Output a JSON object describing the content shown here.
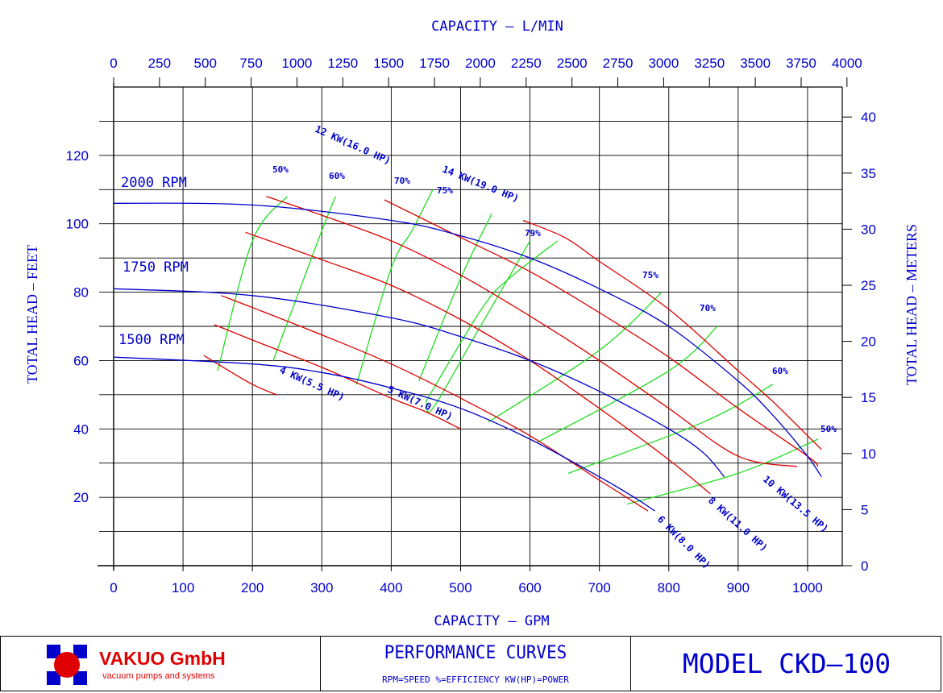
{
  "chart_data": {
    "type": "line",
    "title_top": "CAPACITY  –  L/MIN",
    "title_bottom": "CAPACITY  –  GPM",
    "ylabel_left": "TOTAL HEAD  –  FEET",
    "ylabel_right": "TOTAL HEAD  –  METERS",
    "x_gpm_range": [
      0,
      1050
    ],
    "y_ft_range": [
      0,
      140
    ],
    "x_gpm_ticks": [
      "0",
      "100",
      "200",
      "300",
      "400",
      "500",
      "600",
      "700",
      "800",
      "900",
      "1000"
    ],
    "x_lmin_ticks": [
      "0",
      "250",
      "500",
      "750",
      "1000",
      "1250",
      "1500",
      "1750",
      "2000",
      "2250",
      "2500",
      "2750",
      "3000",
      "3250",
      "3500",
      "3750",
      "4000"
    ],
    "y_ft_ticks": [
      "20",
      "40",
      "60",
      "80",
      "100",
      "120"
    ],
    "y_m_ticks": [
      "0",
      "5",
      "10",
      "15",
      "20",
      "25",
      "30",
      "35",
      "40"
    ],
    "speed_curves": [
      {
        "name": "2000 RPM",
        "x": [
          0,
          200,
          400,
          500,
          600,
          700,
          800,
          900,
          950,
          1000,
          1020
        ],
        "y": [
          106,
          105.5,
          101,
          96.5,
          90,
          81,
          70,
          54,
          44,
          32,
          26
        ]
      },
      {
        "name": "1750 RPM",
        "x": [
          0,
          200,
          400,
          500,
          600,
          700,
          800,
          850,
          880
        ],
        "y": [
          81,
          79,
          72.5,
          67,
          60,
          51,
          40,
          33,
          26
        ]
      },
      {
        "name": "1500 RPM",
        "x": [
          0,
          200,
          300,
          400,
          500,
          600,
          700,
          750,
          780
        ],
        "y": [
          61,
          59,
          56.5,
          52,
          46,
          37,
          26,
          20,
          16
        ]
      }
    ],
    "power_curves": [
      {
        "name": "4 KW(5.5 HP)",
        "x": [
          130,
          150,
          200,
          235
        ],
        "y": [
          61.5,
          59,
          53,
          50
        ]
      },
      {
        "name": "5 KW(7.0 HP)",
        "x": [
          145,
          200,
          300,
          400,
          450,
          500
        ],
        "y": [
          70.5,
          66,
          58,
          49,
          45,
          40
        ]
      },
      {
        "name": "6 KW(8.0 HP)",
        "x": [
          155,
          200,
          300,
          400,
          500,
          600,
          700,
          770
        ],
        "y": [
          79,
          75.5,
          67.5,
          59,
          49,
          38,
          25,
          16
        ]
      },
      {
        "name": "8 KW(11.0 HP)",
        "x": [
          190,
          300,
          400,
          500,
          600,
          700,
          800,
          860
        ],
        "y": [
          97.5,
          89.5,
          82,
          72,
          60,
          46,
          31,
          21
        ]
      },
      {
        "name": "10 KW(13.5 HP)",
        "x": [
          220,
          300,
          400,
          500,
          600,
          700,
          800,
          900,
          985
        ],
        "y": [
          108,
          102.5,
          95,
          85,
          73,
          60,
          46,
          32,
          29
        ]
      },
      {
        "name": "12 KW(16.0 HP)",
        "x": [
          390,
          500,
          600,
          700,
          800,
          900,
          1000,
          1015
        ],
        "y": [
          107,
          96,
          86,
          74,
          61,
          46,
          32,
          29
        ]
      },
      {
        "name": "14 KW(19.0 HP)",
        "x": [
          590,
          650,
          700,
          800,
          900,
          950,
          1000,
          1020
        ],
        "y": [
          101,
          96,
          89,
          75,
          57,
          48,
          38,
          34
        ]
      }
    ],
    "efficiency_curves": [
      {
        "name": "50%",
        "x": [
          150,
          200,
          250
        ],
        "y": [
          57,
          95,
          108
        ]
      },
      {
        "name": "60%",
        "x": [
          230,
          300,
          320
        ],
        "y": [
          60,
          98,
          108
        ]
      },
      {
        "name": "70%",
        "x": [
          350,
          400,
          430,
          460
        ],
        "y": [
          53,
          87,
          98,
          110
        ]
      },
      {
        "name": "75%",
        "x": [
          440,
          500,
          545
        ],
        "y": [
          54,
          84,
          103
        ]
      },
      {
        "name": "79%",
        "x": [
          450,
          460,
          520,
          600
        ],
        "y": [
          48,
          46,
          67,
          95
        ]
      },
      {
        "name": "79%",
        "x": [
          450,
          530,
          570,
          640
        ],
        "y": [
          48,
          75,
          84,
          95
        ]
      },
      {
        "name": "75%",
        "x": [
          540,
          700,
          790
        ],
        "y": [
          42,
          63,
          80
        ]
      },
      {
        "name": "70%",
        "x": [
          610,
          800,
          870
        ],
        "y": [
          36,
          57,
          70
        ]
      },
      {
        "name": "60%",
        "x": [
          655,
          850,
          950
        ],
        "y": [
          27,
          42,
          53
        ]
      },
      {
        "name": "50%",
        "x": [
          740,
          900,
          1015
        ],
        "y": [
          18,
          27,
          37
        ]
      }
    ],
    "grid": true
  },
  "efficiency_labels": [
    "50%",
    "60%",
    "70%",
    "75%",
    "79%",
    "75%",
    "70%",
    "60%",
    "50%"
  ],
  "footer": {
    "brand": "VAKUO GmbH",
    "tagline": "vacuum pumps and systems",
    "perf_title": "PERFORMANCE CURVES",
    "perf_legend": "RPM=SPEED  %=EFFICIENCY  KW(HP)=POWER",
    "model": "MODEL CKD–100"
  },
  "colors": {
    "speed": "#0000cc",
    "power": "#dd0000",
    "efficiency": "#22dd22",
    "grid": "#000000",
    "text": "#0000cc",
    "brand": "#e00000"
  }
}
